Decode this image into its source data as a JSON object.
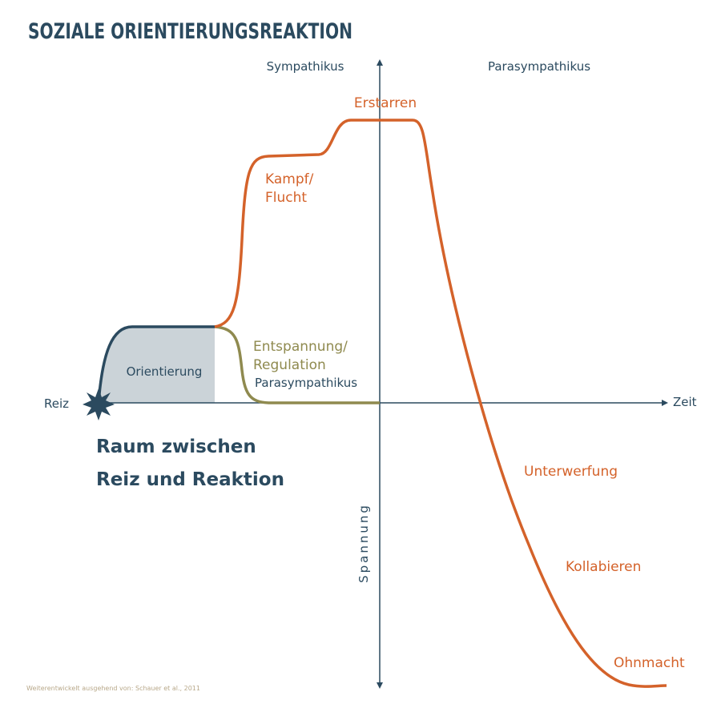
{
  "title": "SOZIALE ORIENTIERUNGSREAKTION",
  "axes": {
    "left_label": "Sympathikus",
    "right_label": "Parasympathikus",
    "x_label": "Zeit",
    "y_label": "Spannung",
    "origin_label": "Reiz"
  },
  "phases": [
    {
      "lines": [
        "Orientierung"
      ]
    },
    {
      "lines": [
        "Kampf/",
        "Flucht"
      ]
    },
    {
      "lines": [
        "Erstarren"
      ]
    },
    {
      "lines": [
        "Entspannung/",
        "Regulation"
      ]
    },
    {
      "lines": [
        "Parasympathikus"
      ]
    },
    {
      "lines": [
        "Unterwerfung"
      ]
    },
    {
      "lines": [
        "Kollabieren"
      ]
    },
    {
      "lines": [
        "Ohnmacht"
      ]
    }
  ],
  "caption": [
    "Raum zwischen",
    "Reiz und Reaktion"
  ],
  "source": "Weiterentwickelt ausgehend von: Schauer et al., 2011"
}
